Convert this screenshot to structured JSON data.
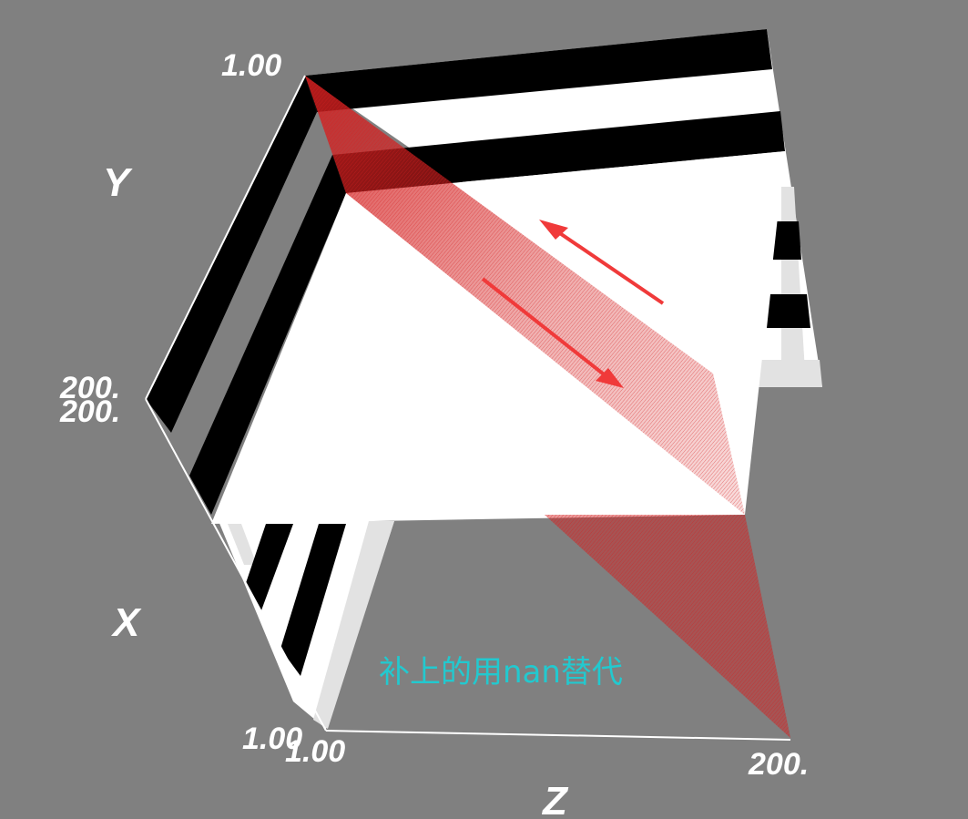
{
  "figure": {
    "background_color": "#808080",
    "axes": {
      "y": {
        "name": "Y",
        "tick_min": "1.00",
        "tick_max": "200."
      },
      "x": {
        "name": "X",
        "tick_min": "1.00",
        "tick_max": "200."
      },
      "z": {
        "name": "Z",
        "tick_min": "1.00",
        "tick_max": "200."
      }
    },
    "annotation": {
      "text": "补上的用nan替代",
      "color": "#22c9cf"
    },
    "arrow_color": "#f03a3a",
    "slice_color": "#d42020",
    "stripe_colors": [
      "#000000",
      "#ffffff",
      "#e2e2e2"
    ]
  }
}
